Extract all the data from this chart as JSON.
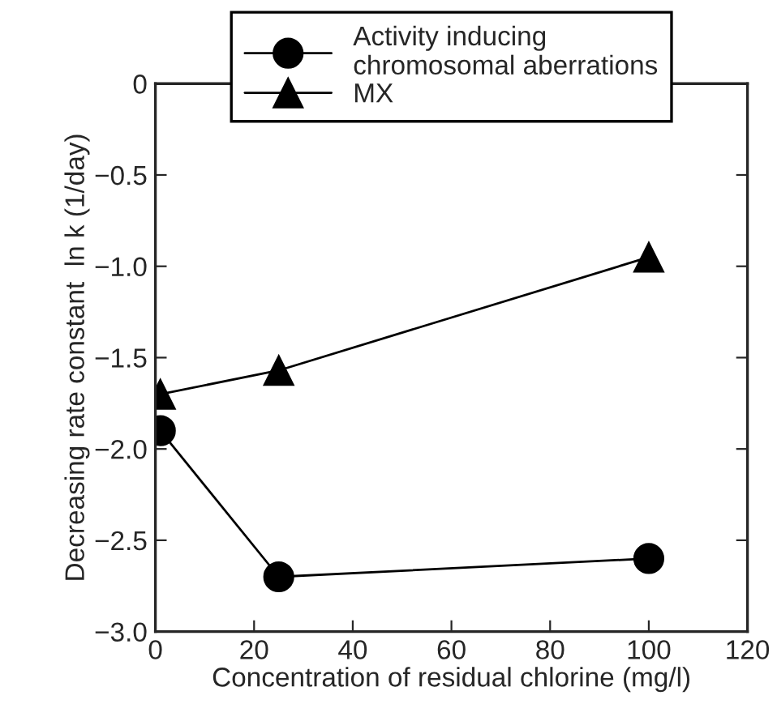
{
  "chart_data": {
    "type": "line",
    "xlabel": "Concentration of residual chlorine (mg/l)",
    "ylabel": "Decreasing rate constant  ln k (1/day)",
    "x": [
      1,
      25,
      100
    ],
    "series": [
      {
        "name": "Activity inducing\nchromosomal aberrations",
        "color": "#000000",
        "marker": "circle",
        "values": [
          -1.9,
          -2.7,
          -2.6
        ]
      },
      {
        "name": "MX",
        "color": "#000000",
        "marker": "triangle",
        "values": [
          -1.7,
          -1.57,
          -0.95
        ]
      }
    ],
    "xlim": [
      0,
      120
    ],
    "xticks": [
      0,
      20,
      40,
      60,
      80,
      100,
      120
    ],
    "ylim": [
      -3.0,
      0
    ],
    "yticks": [
      {
        "value": -3.0,
        "label": "−3.0"
      },
      {
        "value": -2.5,
        "label": "−2.5"
      },
      {
        "value": -2.0,
        "label": "−2.0"
      },
      {
        "value": -1.5,
        "label": "−1.5"
      },
      {
        "value": -1.0,
        "label": "−1.0"
      },
      {
        "value": -0.5,
        "label": "−0.5"
      },
      0
    ],
    "grid": false,
    "legend": "top",
    "line_style": "solid"
  }
}
